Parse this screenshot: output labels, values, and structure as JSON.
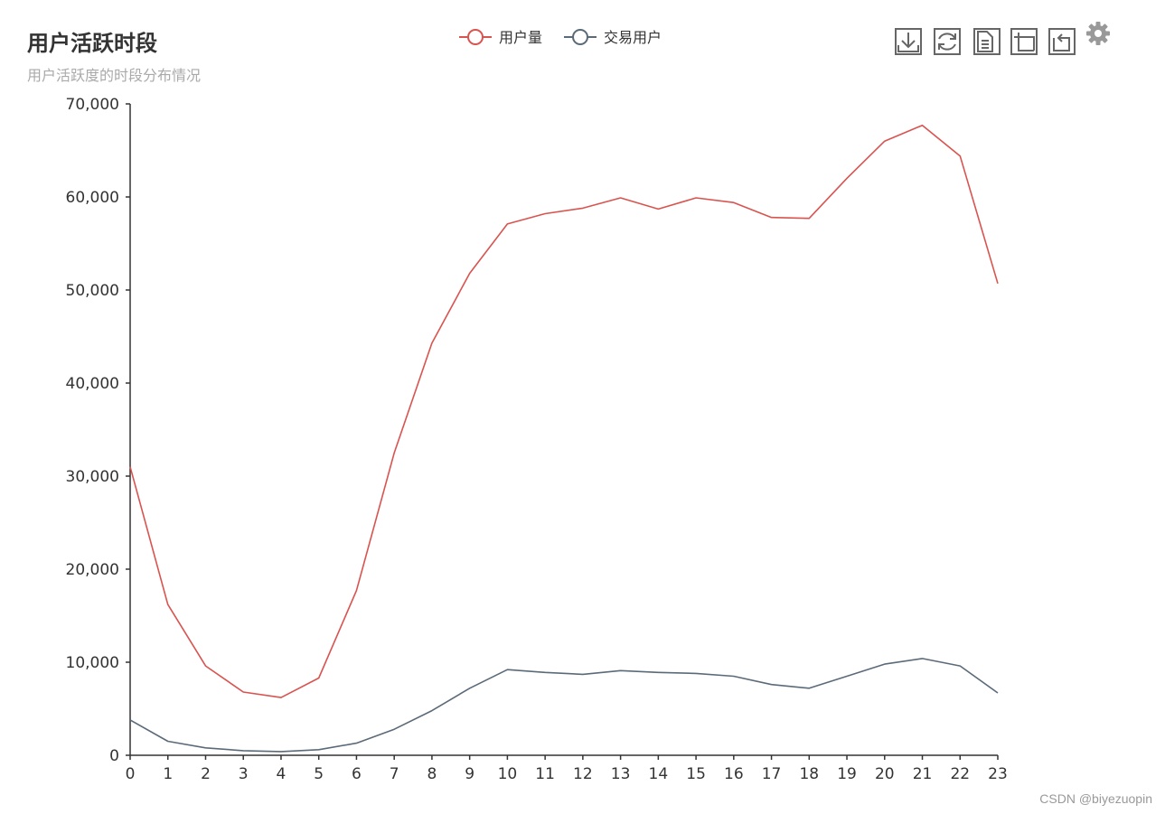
{
  "chart_data": {
    "type": "line",
    "title": "用户活跃时段",
    "subtitle": "用户活跃度的时段分布情况",
    "x": [
      0,
      1,
      2,
      3,
      4,
      5,
      6,
      7,
      8,
      9,
      10,
      11,
      12,
      13,
      14,
      15,
      16,
      17,
      18,
      19,
      20,
      21,
      22,
      23
    ],
    "x_tick_labels": [
      "0",
      "1",
      "2",
      "3",
      "4",
      "5",
      "6",
      "7",
      "8",
      "9",
      "10",
      "11",
      "12",
      "13",
      "14",
      "15",
      "16",
      "17",
      "18",
      "19",
      "20",
      "21",
      "22",
      "23"
    ],
    "series": [
      {
        "name": "用户量",
        "color": "#d9534f",
        "values": [
          31000,
          16200,
          9600,
          6800,
          6200,
          8300,
          17700,
          32500,
          44300,
          51800,
          57100,
          58200,
          58800,
          59900,
          58700,
          59900,
          59400,
          57800,
          57700,
          62000,
          66000,
          67700,
          64400,
          50700
        ]
      },
      {
        "name": "交易用户",
        "color": "#5b6a78",
        "values": [
          3800,
          1500,
          800,
          500,
          400,
          600,
          1300,
          2800,
          4800,
          7200,
          9200,
          8900,
          8700,
          9100,
          8900,
          8800,
          8500,
          7600,
          7200,
          8500,
          9800,
          10400,
          9600,
          6700
        ]
      }
    ],
    "ylim": [
      0,
      70000
    ],
    "y_ticks": [
      0,
      10000,
      20000,
      30000,
      40000,
      50000,
      60000,
      70000
    ],
    "y_tick_labels": [
      "0",
      "10,000",
      "20,000",
      "30,000",
      "40,000",
      "50,000",
      "60,000",
      "70,000"
    ],
    "xlabel": "",
    "ylabel": "",
    "grid": false,
    "legend_position": "top-center"
  },
  "toolbox": {
    "items": [
      "download-icon",
      "refresh-icon",
      "data-view-icon",
      "zoom-icon",
      "zoom-reset-icon",
      "settings-icon"
    ]
  },
  "watermark": "CSDN @biyezuopin"
}
